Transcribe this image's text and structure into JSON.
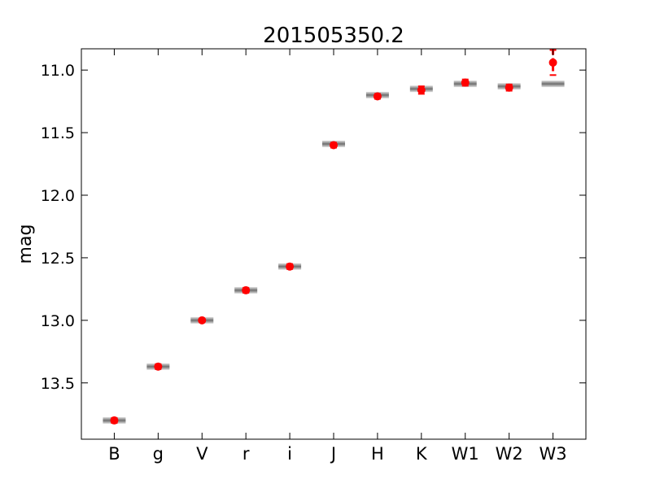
{
  "chart_data": {
    "type": "scatter",
    "title": "201505350.2",
    "xlabel": "",
    "ylabel": "mag",
    "y_axis_inverted": true,
    "ylim": [
      13.95,
      10.83
    ],
    "yticks": [
      11.0,
      11.5,
      12.0,
      12.5,
      13.0,
      13.5
    ],
    "ytick_labels": [
      "11.0",
      "11.5",
      "12.0",
      "12.5",
      "13.0",
      "13.5"
    ],
    "categories": [
      "B",
      "g",
      "V",
      "r",
      "i",
      "J",
      "H",
      "K",
      "W1",
      "W2",
      "W3"
    ],
    "grid": false,
    "observed": {
      "color": "#ff0000",
      "values": [
        13.8,
        13.37,
        13.0,
        12.76,
        12.57,
        11.6,
        11.21,
        11.16,
        11.1,
        11.14,
        10.94
      ],
      "errors": [
        0.02,
        0.02,
        0.01,
        0.02,
        0.02,
        0.02,
        0.02,
        0.03,
        0.025,
        0.025,
        0.1
      ]
    },
    "model": {
      "color": "#888888",
      "values": [
        13.8,
        13.37,
        13.0,
        12.76,
        12.57,
        11.59,
        11.2,
        11.15,
        11.11,
        11.13,
        11.11
      ]
    }
  }
}
